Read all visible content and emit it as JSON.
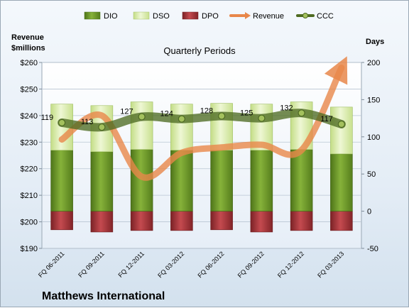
{
  "chart_data": {
    "type": "bar",
    "company": "Matthews International",
    "title": "Quarterly Periods",
    "left_axis_label_line1": "Revenue",
    "left_axis_label_line2": "$millions",
    "right_axis_label": "Days",
    "categories": [
      "FQ 06-2011",
      "FQ 09-2011",
      "FQ 12-2011",
      "FQ 03-2012",
      "FQ 06-2012",
      "FQ 09-2012",
      "FQ 12-2012",
      "FQ 03-2013"
    ],
    "left_ylim": [
      190,
      260
    ],
    "left_ticks": [
      "$190",
      "$200",
      "$210",
      "$220",
      "$230",
      "$240",
      "$250",
      "$260"
    ],
    "right_ylim": [
      -50,
      200
    ],
    "right_ticks": [
      "-50",
      "0",
      "50",
      "100",
      "150",
      "200"
    ],
    "series": [
      {
        "name": "DIO",
        "axis": "right",
        "kind": "bar",
        "color": "#6f9a2a",
        "values": [
          82,
          80,
          83,
          82,
          82,
          82,
          83,
          77
        ]
      },
      {
        "name": "DSO",
        "axis": "right",
        "kind": "bar",
        "color": "#d6eaa6",
        "values": [
          62,
          62,
          64,
          62,
          63,
          62,
          64,
          63
        ]
      },
      {
        "name": "DPO",
        "axis": "right",
        "kind": "bar",
        "color": "#a8363a",
        "values": [
          -25,
          -28,
          -26,
          -26,
          -25,
          -28,
          -26,
          -26
        ]
      },
      {
        "name": "Revenue",
        "axis": "left",
        "kind": "line",
        "color": "#e8874a",
        "values": [
          231,
          240,
          217,
          226,
          228,
          229,
          227,
          258
        ]
      },
      {
        "name": "CCC",
        "axis": "right",
        "kind": "line",
        "color": "#4e6b22",
        "values": [
          119,
          113,
          127,
          124,
          128,
          125,
          132,
          117
        ]
      }
    ],
    "ccc_labels": [
      "119",
      "113",
      "127",
      "124",
      "128",
      "125",
      "132",
      "117"
    ],
    "legend_position": "top",
    "grid": true
  }
}
